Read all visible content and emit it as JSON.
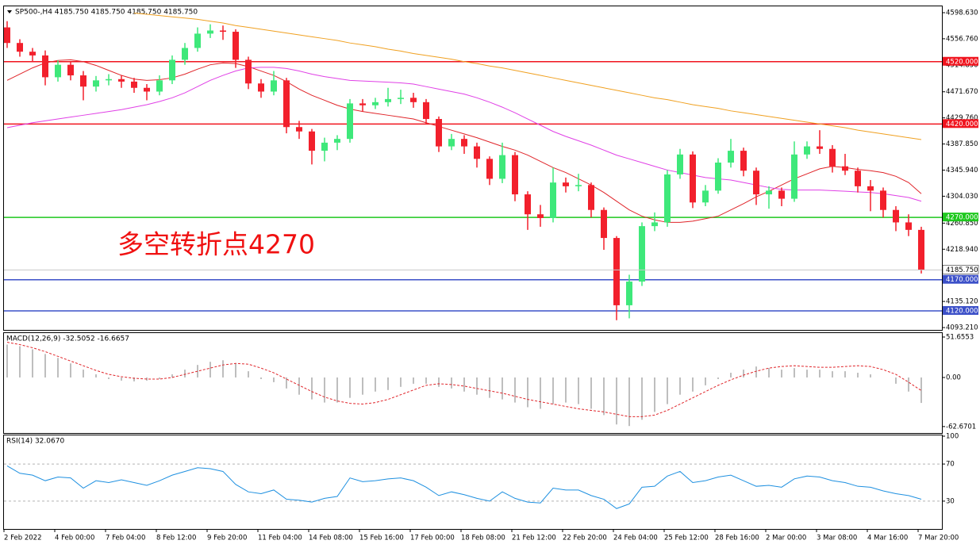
{
  "chart_data": [
    {
      "type": "candlestick",
      "title": "SP500-,H4  4185.750 4185.750 4185.750 4185.750",
      "annotation": "多空转折点4270",
      "categories": [
        "2 Feb 2022",
        null,
        null,
        null,
        "4 Feb 00:00",
        null,
        null,
        null,
        "7 Feb 04:00",
        null,
        null,
        null,
        "8 Feb 12:00",
        null,
        null,
        null,
        "9 Feb 20:00",
        null,
        null,
        null,
        "11 Feb 04:00",
        null,
        null,
        null,
        "14 Feb 08:00",
        null,
        null,
        null,
        "15 Feb 16:00",
        null,
        null,
        null,
        "17 Feb 00:00",
        null,
        null,
        null,
        "18 Feb 08:00",
        null,
        null,
        null,
        "21 Feb 12:00",
        null,
        null,
        null,
        "22 Feb 20:00",
        null,
        null,
        null,
        "24 Feb 04:00",
        null,
        null,
        null,
        "25 Feb 12:00",
        null,
        null,
        null,
        "28 Feb 16:00",
        null,
        null,
        null,
        "2 Mar 00:00",
        null,
        null,
        null,
        "3 Mar 08:00",
        null,
        null,
        null,
        "4 Mar 16:00",
        null,
        null,
        null,
        "7 Mar 20:00"
      ],
      "open": [
        4575,
        4550,
        4536,
        4530,
        4495,
        4515,
        4498,
        4480,
        4490,
        4492,
        4488,
        4478,
        4472,
        4490,
        4523,
        4542,
        4565,
        4570,
        4568,
        4523,
        4485,
        4472,
        4490,
        4415,
        4408,
        4377,
        4390,
        4396,
        4453,
        4450,
        4455,
        4460,
        4462,
        4455,
        4428,
        4384,
        4396,
        4384,
        4364,
        4332,
        4370,
        4307,
        4275,
        4269,
        4326,
        4320,
        4322,
        4282,
        4237,
        4129,
        4167,
        4256,
        4262,
        4339,
        4371,
        4294,
        4313,
        4358,
        4377,
        4345,
        4307,
        4313,
        4300,
        4371,
        4384,
        4380,
        4352,
        4345,
        4320,
        4313,
        4282,
        4262,
        4250
      ],
      "high": [
        4585,
        4556,
        4542,
        4538,
        4522,
        4520,
        4505,
        4497,
        4500,
        4498,
        4494,
        4484,
        4498,
        4530,
        4550,
        4575,
        4580,
        4578,
        4572,
        4528,
        4492,
        4505,
        4494,
        4425,
        4412,
        4398,
        4402,
        4460,
        4460,
        4462,
        4478,
        4475,
        4470,
        4460,
        4432,
        4404,
        4402,
        4390,
        4368,
        4390,
        4375,
        4312,
        4290,
        4350,
        4334,
        4340,
        4326,
        4286,
        4240,
        4178,
        4262,
        4278,
        4346,
        4380,
        4376,
        4322,
        4365,
        4396,
        4382,
        4350,
        4320,
        4318,
        4392,
        4392,
        4410,
        4386,
        4372,
        4350,
        4330,
        4318,
        4288,
        4275,
        4255
      ],
      "low": [
        4542,
        4528,
        4520,
        4482,
        4488,
        4490,
        4458,
        4472,
        4482,
        4478,
        4470,
        4458,
        4466,
        4484,
        4515,
        4536,
        4558,
        4555,
        4510,
        4476,
        4462,
        4466,
        4405,
        4396,
        4355,
        4360,
        4378,
        4390,
        4440,
        4444,
        4448,
        4452,
        4446,
        4420,
        4375,
        4378,
        4372,
        4350,
        4322,
        4325,
        4296,
        4250,
        4255,
        4262,
        4310,
        4312,
        4270,
        4218,
        4105,
        4108,
        4160,
        4248,
        4255,
        4332,
        4285,
        4288,
        4308,
        4350,
        4336,
        4290,
        4284,
        4288,
        4295,
        4364,
        4372,
        4342,
        4338,
        4310,
        4280,
        4270,
        4248,
        4240,
        4180
      ],
      "close": [
        4550,
        4536,
        4530,
        4495,
        4515,
        4498,
        4480,
        4490,
        4492,
        4488,
        4478,
        4472,
        4490,
        4523,
        4542,
        4565,
        4570,
        4568,
        4523,
        4485,
        4472,
        4490,
        4415,
        4408,
        4377,
        4390,
        4396,
        4453,
        4450,
        4455,
        4460,
        4462,
        4455,
        4428,
        4384,
        4396,
        4384,
        4364,
        4332,
        4370,
        4307,
        4275,
        4269,
        4326,
        4320,
        4322,
        4282,
        4237,
        4129,
        4167,
        4256,
        4262,
        4339,
        4371,
        4294,
        4313,
        4358,
        4377,
        4345,
        4307,
        4313,
        4300,
        4371,
        4384,
        4380,
        4352,
        4345,
        4320,
        4313,
        4282,
        4262,
        4250,
        4185.75
      ],
      "up_color": "#3ee87a",
      "down_color": "#f2202c",
      "series": [
        {
          "color": "#e0252a",
          "values": [
            4490,
            4500,
            4510,
            4518,
            4522,
            4523,
            4520,
            4514,
            4506,
            4498,
            4492,
            4490,
            4491,
            4494,
            4500,
            4508,
            4515,
            4518,
            4517,
            4512,
            4505,
            4498,
            4488,
            4476,
            4466,
            4458,
            4450,
            4444,
            4440,
            4437,
            4434,
            4431,
            4428,
            4422,
            4416,
            4410,
            4404,
            4398,
            4391,
            4384,
            4378,
            4370,
            4360,
            4350,
            4342,
            4332,
            4322,
            4310,
            4296,
            4282,
            4272,
            4266,
            4262,
            4262,
            4264,
            4268,
            4272,
            4282,
            4292,
            4303,
            4312,
            4322,
            4332,
            4340,
            4348,
            4352,
            4350,
            4347,
            4345,
            4342,
            4336,
            4326,
            4308
          ]
        },
        {
          "color": "#e040e6",
          "values": [
            4414,
            4418,
            4422,
            4425,
            4428,
            4431,
            4434,
            4437,
            4440,
            4443,
            4447,
            4451,
            4456,
            4462,
            4470,
            4480,
            4490,
            4498,
            4505,
            4510,
            4511,
            4511,
            4509,
            4505,
            4500,
            4496,
            4493,
            4490,
            4489,
            4488,
            4487,
            4486,
            4484,
            4480,
            4476,
            4472,
            4468,
            4462,
            4455,
            4447,
            4438,
            4428,
            4418,
            4408,
            4400,
            4393,
            4386,
            4378,
            4370,
            4364,
            4358,
            4352,
            4346,
            4342,
            4338,
            4334,
            4332,
            4330,
            4326,
            4322,
            4318,
            4315,
            4314,
            4314,
            4314,
            4313,
            4312,
            4311,
            4310,
            4308,
            4305,
            4302,
            4296
          ]
        },
        {
          "color": "#f0a020",
          "values": [
            null,
            null,
            null,
            null,
            null,
            null,
            null,
            null,
            null,
            null,
            4598,
            4596,
            4594,
            4592,
            4590,
            4588,
            4585,
            4582,
            4578,
            4575,
            4572,
            4569,
            4566,
            4563,
            4560,
            4557,
            4554,
            4550,
            4547,
            4544,
            4540,
            4537,
            4533,
            4530,
            4527,
            4524,
            4520,
            4517,
            4513,
            4510,
            4506,
            4502,
            4498,
            4494,
            4490,
            4486,
            4482,
            4478,
            4474,
            4470,
            4466,
            4462,
            4459,
            4455,
            4451,
            4448,
            4445,
            4441,
            4438,
            4435,
            4432,
            4429,
            4426,
            4423,
            4420,
            4417,
            4414,
            4410,
            4407,
            4404,
            4401,
            4398,
            4395
          ]
        }
      ],
      "levels": [
        {
          "value": 4520,
          "label": "4520.000",
          "color": "#f0141e"
        },
        {
          "value": 4420,
          "label": "4420.000",
          "color": "#f0141e"
        },
        {
          "value": 4270,
          "label": "4270.000",
          "color": "#1ec81e"
        },
        {
          "value": 4170,
          "label": "4170.000",
          "color": "#3c50c8"
        },
        {
          "value": 4120,
          "label": "4120.000",
          "color": "#3c50c8"
        }
      ],
      "last_price": {
        "value": 4185.75,
        "label": "4185.750"
      },
      "ylim": [
        4090.7,
        4608.8
      ],
      "yticks": [
        {
          "value": 4598.63,
          "label": "4598.630"
        },
        {
          "value": 4556.76,
          "label": "4556.760"
        },
        {
          "value": 4514.85,
          "label": "4514.850"
        },
        {
          "value": 4471.67,
          "label": "4471.670"
        },
        {
          "value": 4429.76,
          "label": "4429.760"
        },
        {
          "value": 4387.85,
          "label": "4387.850"
        },
        {
          "value": 4345.94,
          "label": "4345.940"
        },
        {
          "value": 4304.03,
          "label": "4304.030"
        },
        {
          "value": 4260.85,
          "label": "4260.850"
        },
        {
          "value": 4218.94,
          "label": "4218.940"
        },
        {
          "value": 4135.12,
          "label": "4135.120"
        },
        {
          "value": 4093.21,
          "label": "4093.210"
        }
      ]
    },
    {
      "type": "macd",
      "title": "MACD(12,26,9) -32.5052 -16.6657",
      "series": [
        {
          "kind": "bar",
          "color": "#a8a8a8",
          "values": [
            42,
            40,
            36,
            30,
            25,
            18,
            10,
            4,
            -2,
            -4,
            -5,
            -4,
            -2,
            4,
            10,
            16,
            20,
            22,
            18,
            8,
            -2,
            -6,
            -14,
            -22,
            -28,
            -32,
            -32,
            -26,
            -22,
            -18,
            -16,
            -12,
            -8,
            -8,
            -12,
            -14,
            -18,
            -22,
            -26,
            -28,
            -32,
            -38,
            -40,
            -34,
            -32,
            -34,
            -40,
            -48,
            -60,
            -62,
            -54,
            -44,
            -34,
            -22,
            -18,
            -10,
            -2,
            6,
            10,
            14,
            12,
            10,
            12,
            10,
            10,
            8,
            8,
            6,
            4,
            0,
            -8,
            -18,
            -32.5052
          ]
        },
        {
          "kind": "line",
          "dash": true,
          "color": "#e0252a",
          "values": [
            45,
            42,
            38,
            33,
            27,
            21,
            15,
            9,
            4,
            1,
            -1,
            -2,
            -2,
            0,
            4,
            8,
            12,
            16,
            18,
            17,
            12,
            6,
            -2,
            -10,
            -18,
            -25,
            -30,
            -33,
            -34,
            -32,
            -28,
            -22,
            -16,
            -10,
            -8,
            -9,
            -11,
            -14,
            -17,
            -20,
            -24,
            -28,
            -31,
            -34,
            -37,
            -40,
            -42,
            -44,
            -47,
            -50,
            -50,
            -48,
            -42,
            -34,
            -26,
            -18,
            -10,
            -3,
            3,
            8,
            12,
            14,
            15,
            14,
            13,
            13,
            14,
            15,
            14,
            10,
            4,
            -6,
            -16.6657
          ]
        }
      ],
      "ylim": [
        -69.9,
        56.7
      ],
      "yticks": [
        51.6553,
        {
          "value": 0,
          "label": "0.00"
        },
        -62.6701
      ]
    },
    {
      "type": "line",
      "title": "RSI(14) 32.0670",
      "series": [
        {
          "color": "#1e90e0",
          "values": [
            68,
            60,
            58,
            52,
            56,
            55,
            44,
            52,
            50,
            53,
            50,
            47,
            52,
            58,
            62,
            66,
            65,
            62,
            48,
            40,
            38,
            42,
            32,
            31,
            29,
            33,
            35,
            55,
            51,
            52,
            54,
            55,
            52,
            45,
            36,
            40,
            37,
            33,
            30,
            40,
            33,
            29,
            28,
            44,
            42,
            42,
            36,
            32,
            22,
            27,
            45,
            46,
            57,
            62,
            50,
            52,
            56,
            58,
            52,
            46,
            47,
            45,
            54,
            57,
            56,
            52,
            50,
            46,
            45,
            41,
            38,
            36,
            32.067
          ]
        }
      ],
      "levels": [
        70,
        30
      ],
      "ylim": [
        0,
        100
      ],
      "yticks": [
        100,
        70,
        30
      ]
    }
  ]
}
